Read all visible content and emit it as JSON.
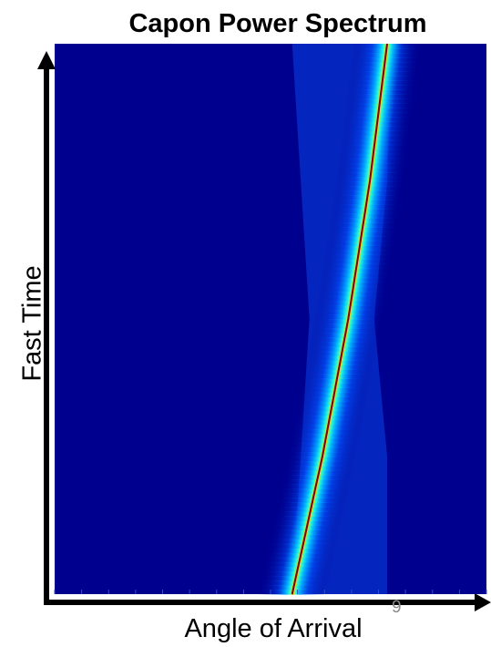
{
  "chart_data": {
    "type": "heatmap",
    "title": "Capon Power Spectrum",
    "xlabel": "Angle of Arrival",
    "ylabel": "Fast Time",
    "colormap": "jet",
    "grid": false,
    "legend": "none",
    "background_color": "#00008f",
    "peak_color": "#800000",
    "spectral_peak": {
      "description_units": "fraction of x-axis range (0 = left, 1 = right)",
      "fast_time": [
        0.0,
        0.25,
        0.5,
        0.75,
        1.0
      ],
      "angle": [
        0.55,
        0.62,
        0.68,
        0.73,
        0.77
      ]
    },
    "lobe_edges": {
      "left": [
        0.55,
        0.57,
        0.59,
        0.57,
        0.55
      ],
      "right": [
        0.77,
        0.77,
        0.74,
        0.77,
        0.78
      ]
    }
  },
  "page": {
    "number": "9"
  }
}
